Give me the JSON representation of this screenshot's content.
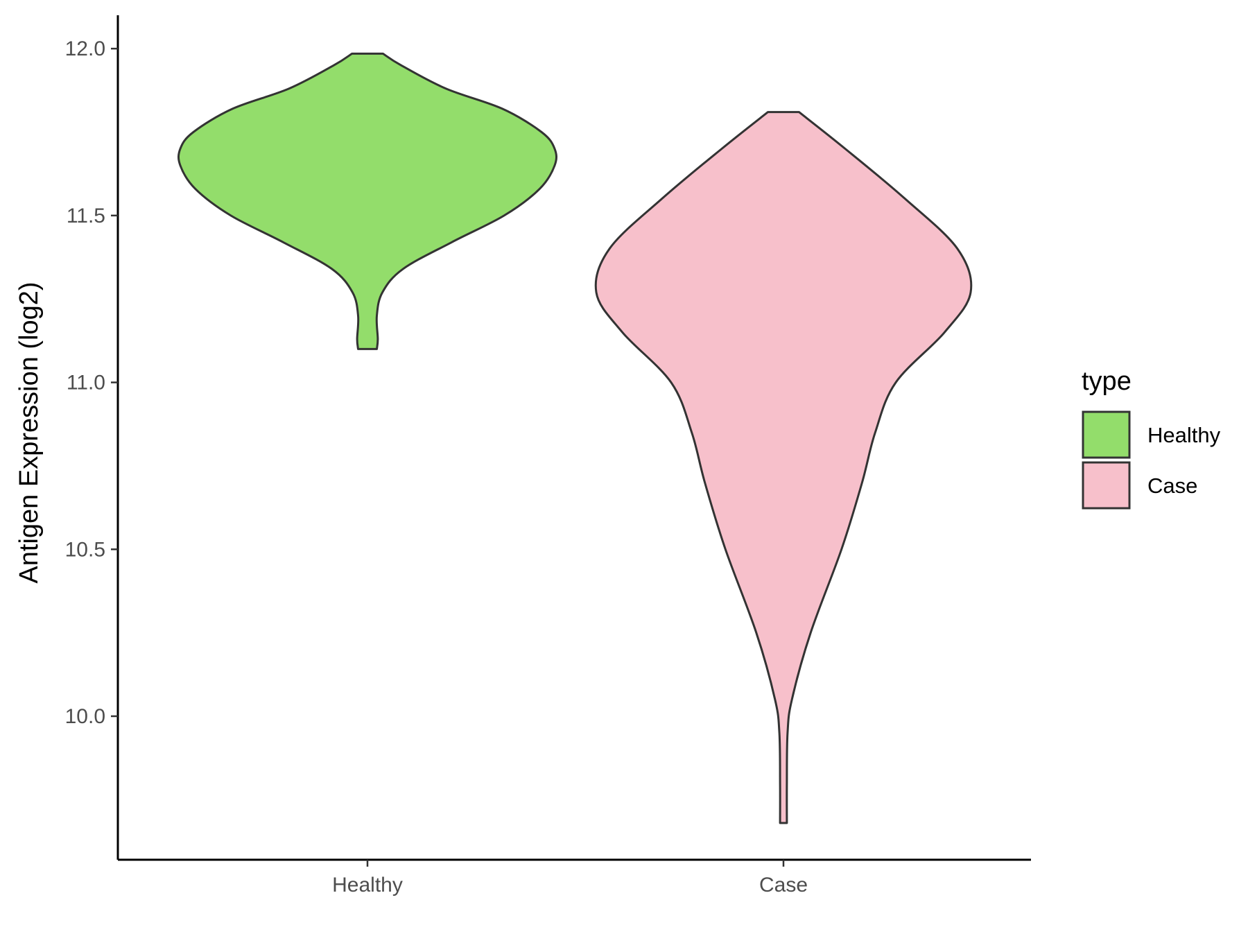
{
  "chart_data": {
    "type": "violin",
    "title": "",
    "xlabel": "",
    "ylabel": "Antigen Expression (log2)",
    "ylim": [
      9.57,
      12.1
    ],
    "yticks": [
      10.0,
      10.5,
      11.0,
      11.5,
      12.0
    ],
    "ytick_labels": [
      "10.0",
      "10.5",
      "11.0",
      "11.5",
      "12.0"
    ],
    "categories": [
      "Healthy",
      "Case"
    ],
    "grid": false,
    "legend": {
      "title": "type",
      "position": "right",
      "entries": [
        {
          "label": "Healthy",
          "color": "#93dd6b"
        },
        {
          "label": "Case",
          "color": "#f7c0cb"
        }
      ]
    },
    "series": [
      {
        "name": "Healthy",
        "color": "#93dd6b",
        "min": 11.1,
        "max": 11.985,
        "profile": [
          [
            11.1,
            0.05
          ],
          [
            11.13,
            0.055
          ],
          [
            11.2,
            0.05
          ],
          [
            11.27,
            0.08
          ],
          [
            11.34,
            0.19
          ],
          [
            11.42,
            0.45
          ],
          [
            11.5,
            0.73
          ],
          [
            11.58,
            0.92
          ],
          [
            11.65,
            1.0
          ],
          [
            11.7,
            1.0
          ],
          [
            11.75,
            0.93
          ],
          [
            11.82,
            0.72
          ],
          [
            11.88,
            0.42
          ],
          [
            11.95,
            0.18
          ],
          [
            11.985,
            0.083
          ]
        ]
      },
      {
        "name": "Case",
        "color": "#f7c0cb",
        "min": 9.68,
        "max": 11.81,
        "profile": [
          [
            9.68,
            0.018
          ],
          [
            9.8,
            0.018
          ],
          [
            9.95,
            0.022
          ],
          [
            10.05,
            0.045
          ],
          [
            10.25,
            0.145
          ],
          [
            10.5,
            0.31
          ],
          [
            10.7,
            0.42
          ],
          [
            10.85,
            0.49
          ],
          [
            11.0,
            0.6
          ],
          [
            11.15,
            0.86
          ],
          [
            11.27,
            1.0
          ],
          [
            11.4,
            0.93
          ],
          [
            11.55,
            0.65
          ],
          [
            11.7,
            0.33
          ],
          [
            11.81,
            0.083
          ]
        ]
      }
    ]
  }
}
